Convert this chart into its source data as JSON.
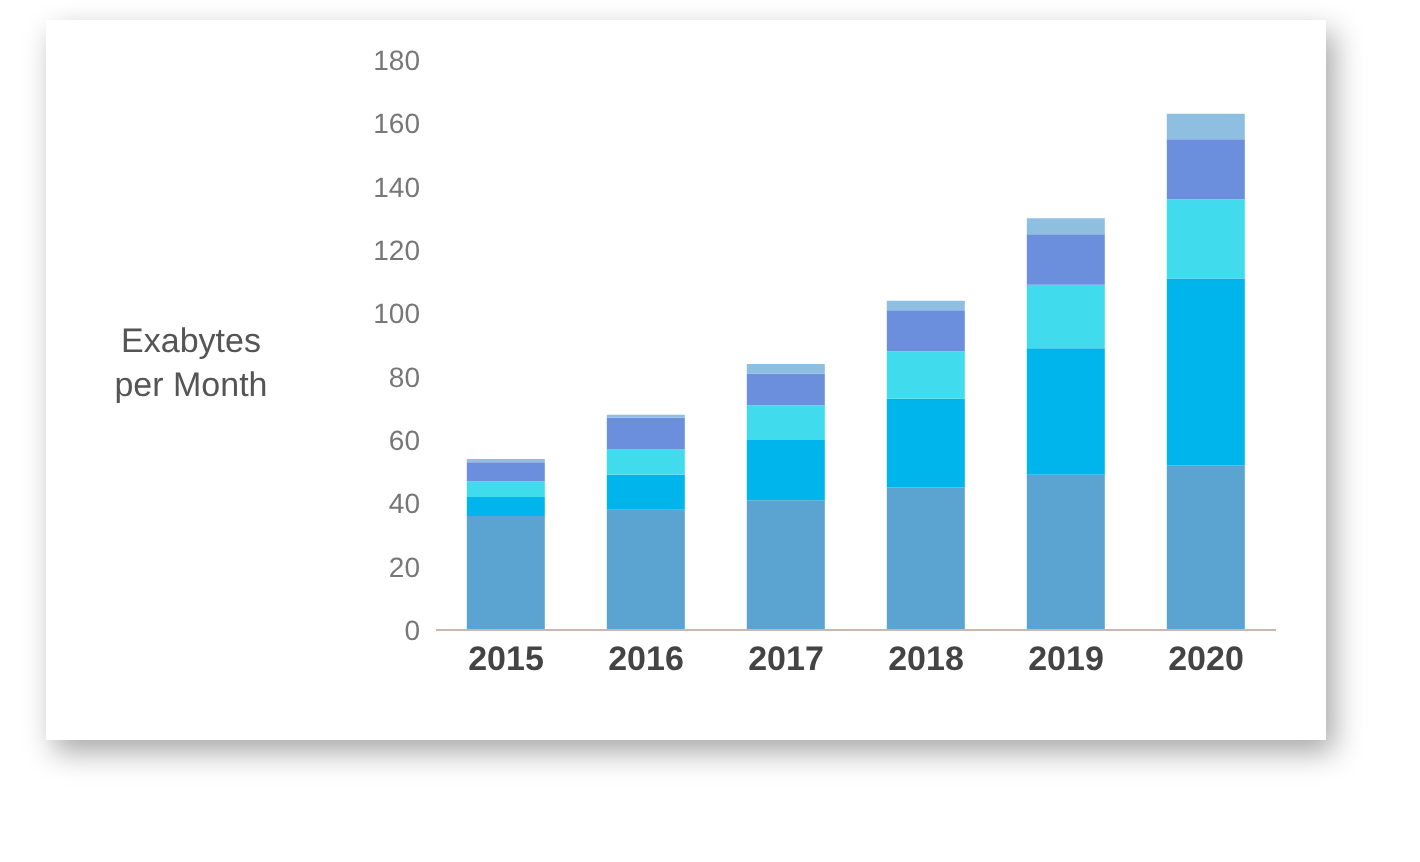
{
  "chart_data": {
    "type": "bar",
    "ylabel": "Exabytes per Month",
    "categories": [
      "2015",
      "2016",
      "2017",
      "2018",
      "2019",
      "2020"
    ],
    "stacked": true,
    "series": [
      {
        "color": "#5ba3d0",
        "values": [
          36,
          38,
          41,
          45,
          49,
          52
        ]
      },
      {
        "color": "#00b4ec",
        "values": [
          6,
          11,
          19,
          28,
          40,
          59
        ]
      },
      {
        "color": "#40dcee",
        "values": [
          5,
          8,
          11,
          15,
          20,
          25
        ]
      },
      {
        "color": "#6b8fdc",
        "values": [
          6,
          10,
          10,
          13,
          16,
          19
        ]
      },
      {
        "color": "#8fbfe0",
        "values": [
          1,
          1,
          3,
          3,
          5,
          8
        ]
      }
    ],
    "ylim": [
      0,
      180
    ],
    "yticks": [
      0,
      20,
      40,
      60,
      80,
      100,
      120,
      140,
      160,
      180
    ],
    "grid": false,
    "legend": false
  }
}
